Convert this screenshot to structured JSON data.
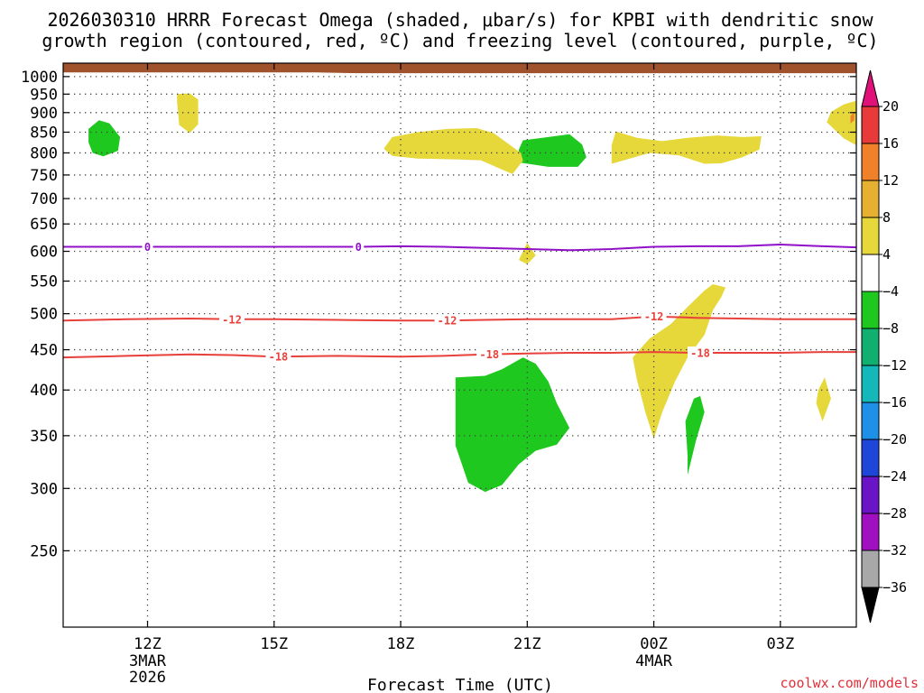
{
  "chart_data": {
    "type": "heatmap",
    "title_lines": [
      "2026030310 HRRR Forecast Omega (shaded, μbar/s) for KPBI with dendritic snow",
      "growth region (contoured, red, ºC) and freezing level (contoured, purple, ºC)"
    ],
    "xlabel": "Forecast Time (UTC)",
    "x_ticks": [
      {
        "hour": 12,
        "label": "12Z",
        "sub": [
          "3MAR",
          "2026"
        ]
      },
      {
        "hour": 15,
        "label": "15Z",
        "sub": []
      },
      {
        "hour": 18,
        "label": "18Z",
        "sub": []
      },
      {
        "hour": 21,
        "label": "21Z",
        "sub": []
      },
      {
        "hour": 24,
        "label": "00Z",
        "sub": [
          "4MAR"
        ]
      },
      {
        "hour": 27,
        "label": "03Z",
        "sub": []
      }
    ],
    "xlim_hours": [
      10,
      28.8
    ],
    "y_ticks": [
      250,
      300,
      350,
      400,
      450,
      500,
      550,
      600,
      650,
      700,
      750,
      800,
      850,
      900,
      950,
      1000
    ],
    "ylim_hpa": [
      1040,
      200
    ],
    "y_scale": "log-pressure",
    "grid": true,
    "colorbar": {
      "labels": [
        "20",
        "16",
        "12",
        "8",
        "4",
        "−4",
        "−8",
        "−12",
        "−16",
        "−20",
        "−24",
        "−28",
        "−32",
        "−36"
      ],
      "colors": [
        "#e83a3a",
        "#f0802a",
        "#e6b030",
        "#e6d83a",
        "#ffffff",
        "#1ec81e",
        "#10b070",
        "#14b8b8",
        "#1e90e8",
        "#1e46d8",
        "#6a14c8",
        "#a010c0",
        "#a8a8a8"
      ],
      "top_color": "#e0127a",
      "bottom_color": "#000000"
    },
    "contours": [
      {
        "value": "-18",
        "color": "#e8403a",
        "points": [
          [
            10,
            440
          ],
          [
            11.5,
            442
          ],
          [
            13,
            444
          ],
          [
            14,
            443
          ],
          [
            15,
            441
          ],
          [
            16.5,
            442
          ],
          [
            18,
            441
          ],
          [
            19,
            442
          ],
          [
            20,
            444
          ],
          [
            21,
            445
          ],
          [
            22,
            446
          ],
          [
            23,
            446
          ],
          [
            24,
            447
          ],
          [
            25,
            446
          ],
          [
            26,
            446
          ],
          [
            27,
            446
          ],
          [
            28,
            447
          ],
          [
            28.8,
            447
          ]
        ],
        "labels": [
          15.1,
          20.1,
          25.1
        ]
      },
      {
        "value": "-12",
        "color": "#e8403a",
        "points": [
          [
            10,
            490
          ],
          [
            11.5,
            492
          ],
          [
            13,
            493
          ],
          [
            14,
            492
          ],
          [
            15,
            492
          ],
          [
            16.5,
            491
          ],
          [
            18,
            490
          ],
          [
            19,
            490
          ],
          [
            20,
            491
          ],
          [
            21,
            492
          ],
          [
            22,
            492
          ],
          [
            23,
            492
          ],
          [
            24,
            496
          ],
          [
            25,
            494
          ],
          [
            26,
            493
          ],
          [
            27,
            492
          ],
          [
            28,
            492
          ],
          [
            28.8,
            492
          ]
        ],
        "labels": [
          14,
          19.1,
          24
        ]
      },
      {
        "value": "0",
        "color": "#9010c8",
        "points": [
          [
            10,
            608
          ],
          [
            11,
            608
          ],
          [
            12,
            608
          ],
          [
            13,
            608
          ],
          [
            14,
            608
          ],
          [
            15,
            608
          ],
          [
            16,
            608
          ],
          [
            17,
            608
          ],
          [
            18,
            609
          ],
          [
            19,
            608
          ],
          [
            20,
            606
          ],
          [
            21,
            604
          ],
          [
            22,
            602
          ],
          [
            23,
            604
          ],
          [
            24,
            608
          ],
          [
            25,
            609
          ],
          [
            26,
            609
          ],
          [
            27,
            612
          ],
          [
            28,
            609
          ],
          [
            28.8,
            607
          ]
        ],
        "labels": [
          12,
          17
        ]
      }
    ],
    "shaded_regions": [
      {
        "color": "#1ec81e",
        "points": [
          [
            19.3,
            415
          ],
          [
            19.3,
            340
          ],
          [
            19.6,
            305
          ],
          [
            20,
            297
          ],
          [
            20.4,
            303
          ],
          [
            20.8,
            322
          ],
          [
            21.2,
            335
          ],
          [
            21.7,
            341
          ],
          [
            22,
            358
          ],
          [
            21.7,
            385
          ],
          [
            21.5,
            410
          ],
          [
            21.2,
            432
          ],
          [
            20.9,
            440
          ],
          [
            20.4,
            425
          ],
          [
            20,
            417
          ]
        ]
      },
      {
        "color": "#1ec81e",
        "points": [
          [
            24.8,
            312
          ],
          [
            25,
            345
          ],
          [
            25.2,
            375
          ],
          [
            25.1,
            393
          ],
          [
            24.95,
            390
          ],
          [
            24.75,
            365
          ],
          [
            24.8,
            330
          ]
        ]
      },
      {
        "color": "#1ec81e",
        "points": [
          [
            10.7,
            800
          ],
          [
            10.95,
            792
          ],
          [
            11.3,
            805
          ],
          [
            11.35,
            838
          ],
          [
            11.1,
            872
          ],
          [
            10.85,
            880
          ],
          [
            10.6,
            858
          ],
          [
            10.6,
            825
          ]
        ]
      },
      {
        "color": "#1ec81e",
        "points": [
          [
            20.8,
            778
          ],
          [
            21.5,
            768
          ],
          [
            22.2,
            768
          ],
          [
            22.4,
            790
          ],
          [
            22.3,
            820
          ],
          [
            22.0,
            845
          ],
          [
            21.5,
            838
          ],
          [
            20.9,
            830
          ],
          [
            20.8,
            808
          ]
        ]
      },
      {
        "color": "#e6d83a",
        "points": [
          [
            23.6,
            412
          ],
          [
            23.8,
            375
          ],
          [
            24,
            347
          ],
          [
            24.2,
            375
          ],
          [
            24.5,
            410
          ],
          [
            24.8,
            440
          ],
          [
            25.2,
            470
          ],
          [
            25.4,
            505
          ],
          [
            25.6,
            525
          ],
          [
            25.7,
            540
          ],
          [
            25.4,
            545
          ],
          [
            25.2,
            535
          ],
          [
            24.8,
            510
          ],
          [
            24.4,
            485
          ],
          [
            23.9,
            465
          ],
          [
            23.5,
            440
          ]
        ]
      },
      {
        "color": "#e6d83a",
        "points": [
          [
            27.85,
            385
          ],
          [
            28,
            365
          ],
          [
            28.2,
            390
          ],
          [
            28.05,
            415
          ],
          [
            27.9,
            400
          ]
        ]
      },
      {
        "color": "#e6d83a",
        "points": [
          [
            20.8,
            585
          ],
          [
            21,
            578
          ],
          [
            21.2,
            593
          ],
          [
            21,
            615
          ],
          [
            20.9,
            600
          ]
        ]
      },
      {
        "color": "#e6d83a",
        "points": [
          [
            12.7,
            930
          ],
          [
            12.75,
            868
          ],
          [
            13,
            848
          ],
          [
            13.2,
            870
          ],
          [
            13.2,
            935
          ],
          [
            13,
            952
          ],
          [
            12.7,
            950
          ]
        ]
      },
      {
        "color": "#e6d83a",
        "points": [
          [
            17.6,
            810
          ],
          [
            17.8,
            793
          ],
          [
            18.4,
            787
          ],
          [
            19.3,
            785
          ],
          [
            19.9,
            783
          ],
          [
            20.4,
            762
          ],
          [
            20.65,
            752
          ],
          [
            20.9,
            782
          ],
          [
            20.85,
            800
          ],
          [
            20.6,
            818
          ],
          [
            20.2,
            848
          ],
          [
            19.8,
            860
          ],
          [
            19.1,
            858
          ],
          [
            18.4,
            850
          ],
          [
            17.8,
            838
          ]
        ]
      },
      {
        "color": "#e6d83a",
        "points": [
          [
            23,
            775
          ],
          [
            23.9,
            800
          ],
          [
            24.6,
            794
          ],
          [
            25.2,
            775
          ],
          [
            25.6,
            776
          ],
          [
            26.1,
            790
          ],
          [
            26.5,
            808
          ],
          [
            26.55,
            840
          ],
          [
            26.1,
            838
          ],
          [
            25.5,
            842
          ],
          [
            24.8,
            836
          ],
          [
            24.2,
            828
          ],
          [
            23.6,
            836
          ],
          [
            23.1,
            852
          ],
          [
            23,
            818
          ]
        ]
      },
      {
        "color": "#e6d83a",
        "points": [
          [
            28.8,
            818
          ],
          [
            28.5,
            835
          ],
          [
            28.1,
            875
          ],
          [
            28.2,
            902
          ],
          [
            28.5,
            922
          ],
          [
            28.8,
            932
          ]
        ]
      },
      {
        "color": "#f0802a",
        "points": [
          [
            28.75,
            880
          ],
          [
            28.66,
            872
          ],
          [
            28.66,
            892
          ],
          [
            28.75,
            900
          ]
        ]
      },
      {
        "color": "#a0522d",
        "points": [
          [
            10,
            1012
          ],
          [
            16,
            1012
          ],
          [
            17,
            1010
          ],
          [
            28.8,
            1010
          ],
          [
            28.8,
            1040
          ],
          [
            10,
            1040
          ]
        ]
      }
    ]
  },
  "credit": "coolwx.com/models"
}
